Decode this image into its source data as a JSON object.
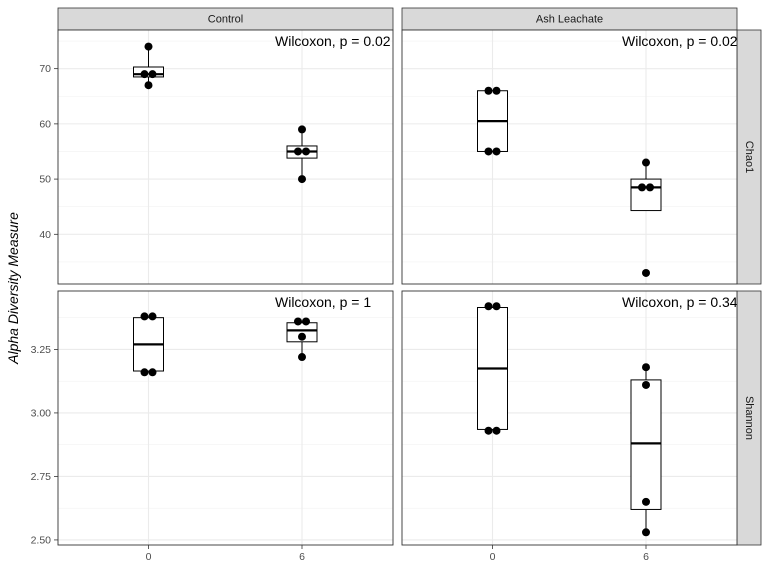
{
  "chart_data": {
    "type": "boxplot",
    "ylabel": "Alpha Diversity Measure",
    "xlabel": "",
    "x_categories": [
      "0",
      "6"
    ],
    "col_facets": [
      "Control",
      "Ash Leachate"
    ],
    "row_facets": [
      {
        "name": "Chao1",
        "ylim": [
          31,
          77
        ],
        "yticks": [
          40,
          50,
          60,
          70
        ]
      },
      {
        "name": "Shannon",
        "ylim": [
          2.48,
          3.48
        ],
        "yticks": [
          "2.50",
          "2.75",
          "3.00",
          "3.25"
        ]
      }
    ],
    "panels": [
      {
        "row": "Chao1",
        "col": "Control",
        "annotation": "Wilcoxon, p = 0.02",
        "groups": [
          {
            "x": "0",
            "box": {
              "min": 67,
              "q1": 68.5,
              "median": 69,
              "q3": 70.3,
              "max": 74
            },
            "points": [
              74,
              69,
              69,
              67
            ]
          },
          {
            "x": "6",
            "box": {
              "min": 50,
              "q1": 53.8,
              "median": 55,
              "q3": 56,
              "max": 59
            },
            "points": [
              59,
              55,
              55,
              50
            ]
          }
        ]
      },
      {
        "row": "Chao1",
        "col": "Ash Leachate",
        "annotation": "Wilcoxon, p = 0.02",
        "groups": [
          {
            "x": "0",
            "box": {
              "min": 55,
              "q1": 55,
              "median": 60.5,
              "q3": 66,
              "max": 66
            },
            "points": [
              66,
              66,
              55,
              55
            ]
          },
          {
            "x": "6",
            "box": {
              "min": 44.3,
              "q1": 44.3,
              "median": 48.5,
              "q3": 50,
              "max": 53
            },
            "points": [
              53,
              48.5,
              48.5,
              33
            ]
          }
        ]
      },
      {
        "row": "Shannon",
        "col": "Control",
        "annotation": "Wilcoxon, p = 1",
        "groups": [
          {
            "x": "0",
            "box": {
              "min": 3.165,
              "q1": 3.165,
              "median": 3.27,
              "q3": 3.375,
              "max": 3.375
            },
            "points": [
              3.38,
              3.38,
              3.16,
              3.16
            ]
          },
          {
            "x": "6",
            "box": {
              "min": 3.22,
              "q1": 3.28,
              "median": 3.325,
              "q3": 3.355,
              "max": 3.36
            },
            "points": [
              3.36,
              3.36,
              3.3,
              3.22
            ]
          }
        ]
      },
      {
        "row": "Shannon",
        "col": "Ash Leachate",
        "annotation": "Wilcoxon, p = 0.34",
        "groups": [
          {
            "x": "0",
            "box": {
              "min": 2.935,
              "q1": 2.935,
              "median": 3.175,
              "q3": 3.415,
              "max": 3.415
            },
            "points": [
              3.42,
              3.42,
              2.93,
              2.93
            ]
          },
          {
            "x": "6",
            "box": {
              "min": 2.53,
              "q1": 2.62,
              "median": 2.88,
              "q3": 3.13,
              "max": 3.18
            },
            "points": [
              3.18,
              3.11,
              2.65,
              2.53
            ]
          }
        ]
      }
    ],
    "colors": {
      "strip_fill": "#d9d9d9",
      "grid": "#ebebeb",
      "point": "#000000",
      "box_stroke": "#000000"
    },
    "grid": true
  }
}
